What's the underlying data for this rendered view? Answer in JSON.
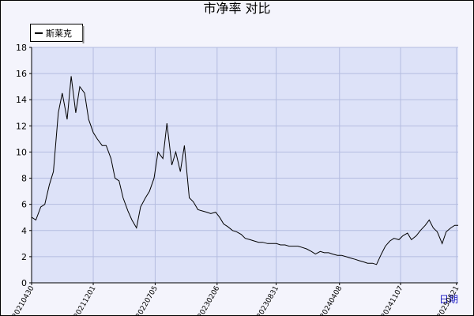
{
  "chart_data": {
    "type": "line",
    "title": "市净率  对比",
    "x_label": "日期",
    "xlim": [
      "20210430",
      "20250527"
    ],
    "xticks": [
      "20210430",
      "20211201",
      "20220705",
      "20230206",
      "20230831",
      "20240408",
      "20241107",
      "20250521"
    ],
    "ylim": [
      0,
      18
    ],
    "yticks": [
      0,
      2,
      4,
      6,
      8,
      10,
      12,
      14,
      16,
      18
    ],
    "grid": true,
    "legend": "top-left",
    "x": [
      "20210501",
      "20210515",
      "20210601",
      "20210615",
      "20210701",
      "20210715",
      "20210801",
      "20210815",
      "20210901",
      "20210915",
      "20211001",
      "20211015",
      "20211101",
      "20211115",
      "20211201",
      "20211215",
      "20220101",
      "20220115",
      "20220201",
      "20220215",
      "20220301",
      "20220315",
      "20220401",
      "20220415",
      "20220501",
      "20220515",
      "20220601",
      "20220615",
      "20220701",
      "20220715",
      "20220801",
      "20220815",
      "20220901",
      "20220915",
      "20221001",
      "20221015",
      "20221101",
      "20221115",
      "20221201",
      "20221215",
      "20230101",
      "20230115",
      "20230201",
      "20230215",
      "20230301",
      "20230315",
      "20230401",
      "20230415",
      "20230501",
      "20230515",
      "20230601",
      "20230615",
      "20230701",
      "20230715",
      "20230801",
      "20230815",
      "20230901",
      "20230915",
      "20231001",
      "20231015",
      "20231101",
      "20231115",
      "20231201",
      "20231215",
      "20240101",
      "20240115",
      "20240201",
      "20240215",
      "20240301",
      "20240315",
      "20240401",
      "20240415",
      "20240501",
      "20240515",
      "20240601",
      "20240615",
      "20240701",
      "20240715",
      "20240801",
      "20240815",
      "20240901",
      "20240915",
      "20241001",
      "20241015",
      "20241101",
      "20241115",
      "20241201",
      "20241215",
      "20250101",
      "20250115",
      "20250201",
      "20250215",
      "20250301",
      "20250315",
      "20250401",
      "20250415",
      "20250501",
      "20250515",
      "20250527"
    ],
    "series": [
      {
        "name": "斯莱克",
        "color": "#000000",
        "values": [
          5.0,
          4.8,
          5.8,
          6.0,
          7.5,
          8.5,
          13,
          14.5,
          12.5,
          15.8,
          13,
          15,
          14.5,
          12.5,
          11.5,
          11,
          10.5,
          10.5,
          9.5,
          8,
          7.8,
          6.5,
          5.5,
          4.8,
          4.2,
          5.8,
          6.5,
          7,
          8,
          10,
          9.5,
          12.2,
          9,
          10,
          8.5,
          10.5,
          6.5,
          6.2,
          5.6,
          5.5,
          5.4,
          5.3,
          5.4,
          5.0,
          4.5,
          4.3,
          4.0,
          3.9,
          3.7,
          3.4,
          3.3,
          3.2,
          3.1,
          3.1,
          3.0,
          3.0,
          3.0,
          2.9,
          2.9,
          2.8,
          2.8,
          2.8,
          2.7,
          2.6,
          2.4,
          2.2,
          2.4,
          2.3,
          2.3,
          2.2,
          2.1,
          2.1,
          2.0,
          1.9,
          1.8,
          1.7,
          1.6,
          1.5,
          1.5,
          1.4,
          2.2,
          2.8,
          3.2,
          3.4,
          3.3,
          3.6,
          3.8,
          3.3,
          3.6,
          4.0,
          4.4,
          4.8,
          4.2,
          3.9,
          3.0,
          3.9,
          4.2,
          4.4,
          4.4
        ]
      }
    ]
  }
}
